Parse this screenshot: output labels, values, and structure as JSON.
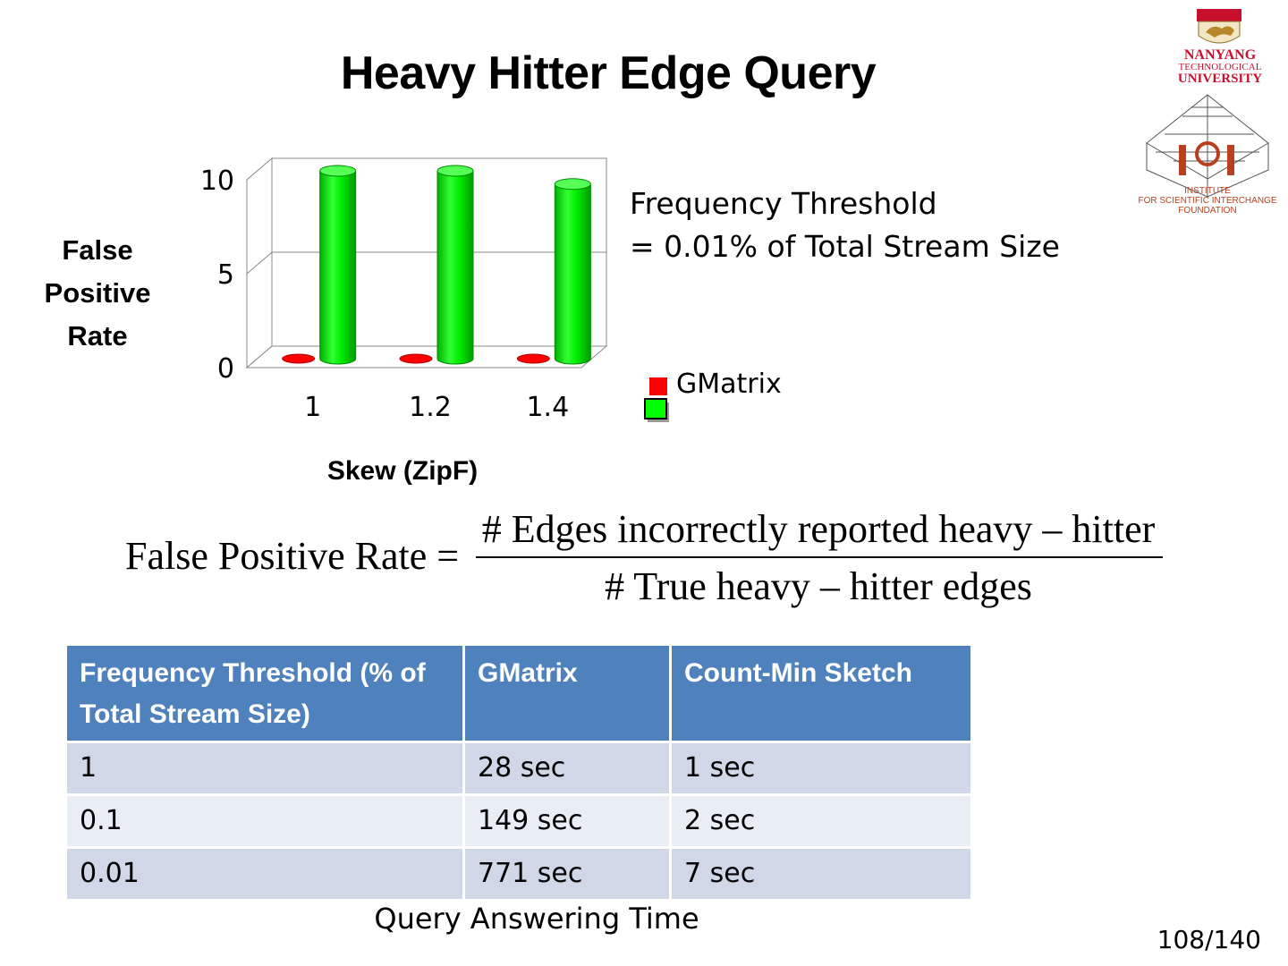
{
  "slide": {
    "title": "Heavy Hitter Edge Query",
    "page_number": "108/140"
  },
  "logos": {
    "ntu_lines": [
      "NANYANG",
      "TECHNOLOGICAL",
      "UNIVERSITY"
    ],
    "isi_lines": [
      "INSTITUTE",
      "FOR SCIENTIFIC INTERCHANGE",
      "FOUNDATION"
    ]
  },
  "colors": {
    "gmatrix_red": "#ff0000",
    "second_series_green": "#00ff00",
    "table_header": "#4f81bd",
    "table_row_odd": "#d0d8e8",
    "table_row_even": "#e9edf4",
    "ntu_red": "#c8102e"
  },
  "chart_data": {
    "type": "bar",
    "title": "",
    "xlabel": "Skew (ZipF)",
    "ylabel_lines": [
      "False",
      "Positive",
      "Rate"
    ],
    "categories": [
      "1",
      "1.2",
      "1.4"
    ],
    "series": [
      {
        "name": "GMatrix",
        "values": [
          0,
          0,
          0
        ],
        "color": "#ff0000"
      },
      {
        "values": [
          10,
          10,
          9.3
        ],
        "color": "#00ff00"
      }
    ],
    "ylim": [
      0,
      10
    ],
    "yticks": [
      "0",
      "5",
      "10"
    ],
    "grid": true,
    "style": "3d-cylinder",
    "legend_position": "right",
    "annotation_lines": [
      "Frequency Threshold",
      "= 0.01% of Total Stream Size"
    ]
  },
  "formula": {
    "lhs": "False Positive Rate =",
    "numerator": "# Edges incorrectly reported heavy – hitter",
    "denominator": "# True heavy – hitter edges"
  },
  "table": {
    "headers": [
      "Frequency Threshold (% of Total Stream Size)",
      "GMatrix",
      "Count-Min Sketch"
    ],
    "rows": [
      [
        "1",
        "28 sec",
        "1 sec"
      ],
      [
        "0.1",
        "149 sec",
        "2 sec"
      ],
      [
        "0.01",
        "771 sec",
        "7 sec"
      ]
    ],
    "caption": "Query Answering Time"
  }
}
